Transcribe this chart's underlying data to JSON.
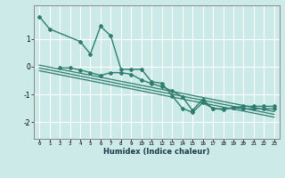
{
  "xlabel": "Humidex (Indice chaleur)",
  "ylabel": "",
  "bg_color": "#cceae7",
  "line_color": "#2e7d6e",
  "grid_color": "#ffffff",
  "xlim": [
    -0.5,
    23.5
  ],
  "ylim": [
    -2.6,
    2.2
  ],
  "xticks": [
    0,
    1,
    2,
    3,
    4,
    5,
    6,
    7,
    8,
    9,
    10,
    11,
    12,
    13,
    14,
    15,
    16,
    17,
    18,
    19,
    20,
    21,
    22,
    23
  ],
  "yticks": [
    -2,
    -1,
    0,
    1
  ],
  "series": [
    {
      "x": [
        0,
        1,
        4,
        5,
        6,
        7,
        8,
        9,
        10,
        11,
        12,
        13,
        14,
        15,
        16,
        17,
        18,
        19,
        20,
        21,
        22,
        23
      ],
      "y": [
        1.8,
        1.35,
        0.9,
        0.45,
        1.45,
        1.1,
        -0.1,
        -0.1,
        -0.1,
        -0.55,
        -0.6,
        -1.05,
        -1.5,
        -1.65,
        -1.3,
        -1.5,
        -1.55,
        -1.48,
        -1.52,
        -1.52,
        -1.52,
        -1.52
      ],
      "marker": "D",
      "markersize": 2.0,
      "linewidth": 1.0
    },
    {
      "x": [
        2,
        3,
        4,
        5,
        6,
        7,
        8,
        9,
        10,
        11,
        12,
        13,
        14,
        15,
        16,
        17,
        18,
        19,
        20,
        21,
        22,
        23
      ],
      "y": [
        -0.05,
        -0.05,
        -0.12,
        -0.22,
        -0.32,
        -0.22,
        -0.22,
        -0.28,
        -0.48,
        -0.62,
        -0.72,
        -0.88,
        -1.08,
        -1.58,
        -1.18,
        -1.52,
        -1.52,
        -1.48,
        -1.43,
        -1.43,
        -1.43,
        -1.43
      ],
      "marker": "D",
      "markersize": 2.0,
      "linewidth": 1.0
    },
    {
      "x": [
        0,
        23
      ],
      "y": [
        0.05,
        -1.62
      ],
      "marker": null,
      "markersize": 0,
      "linewidth": 0.9
    },
    {
      "x": [
        0,
        23
      ],
      "y": [
        -0.05,
        -1.72
      ],
      "marker": null,
      "markersize": 0,
      "linewidth": 0.9
    },
    {
      "x": [
        0,
        23
      ],
      "y": [
        -0.15,
        -1.82
      ],
      "marker": null,
      "markersize": 0,
      "linewidth": 0.9
    }
  ]
}
